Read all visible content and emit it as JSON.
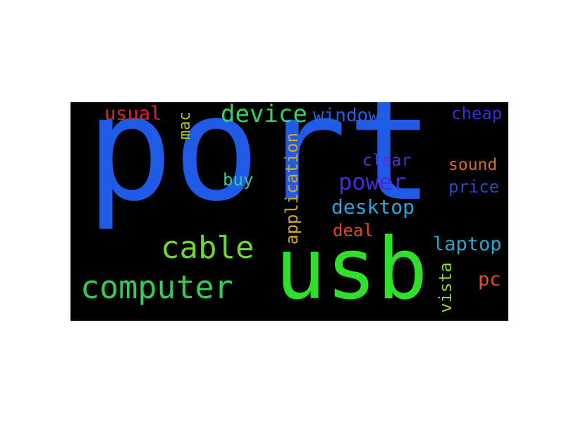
{
  "word_cloud": {
    "background": "#000000",
    "words": [
      {
        "id": "port",
        "text": "port",
        "color": "#1f5be6"
      },
      {
        "id": "usb",
        "text": "usb",
        "color": "#2fe02a"
      },
      {
        "id": "computer",
        "text": "computer",
        "color": "#33cc55"
      },
      {
        "id": "cable",
        "text": "cable",
        "color": "#6fd82f"
      },
      {
        "id": "device",
        "text": "device",
        "color": "#35d45a"
      },
      {
        "id": "windows",
        "text": "windows",
        "color": "#2a5fd8"
      },
      {
        "id": "cheap",
        "text": "cheap",
        "color": "#3530d0"
      },
      {
        "id": "usual",
        "text": "usual",
        "color": "#d8262c"
      },
      {
        "id": "mac",
        "text": "mac",
        "color": "#b8c51d"
      },
      {
        "id": "application",
        "text": "application",
        "color": "#d5a51c"
      },
      {
        "id": "clear",
        "text": "clear",
        "color": "#5a2ed6"
      },
      {
        "id": "power",
        "text": "power",
        "color": "#4a28d8"
      },
      {
        "id": "buy",
        "text": "buy",
        "color": "#2fcaa0"
      },
      {
        "id": "desktop",
        "text": "desktop",
        "color": "#2aa6d8"
      },
      {
        "id": "sound",
        "text": "sound",
        "color": "#d86a1e"
      },
      {
        "id": "price",
        "text": "price",
        "color": "#2648c8"
      },
      {
        "id": "deal",
        "text": "deal",
        "color": "#e04a1a"
      },
      {
        "id": "laptop",
        "text": "laptop",
        "color": "#24a9d0"
      },
      {
        "id": "pc",
        "text": "pc",
        "color": "#e4502a"
      },
      {
        "id": "vista",
        "text": "vista",
        "color": "#8ed82a"
      }
    ]
  }
}
